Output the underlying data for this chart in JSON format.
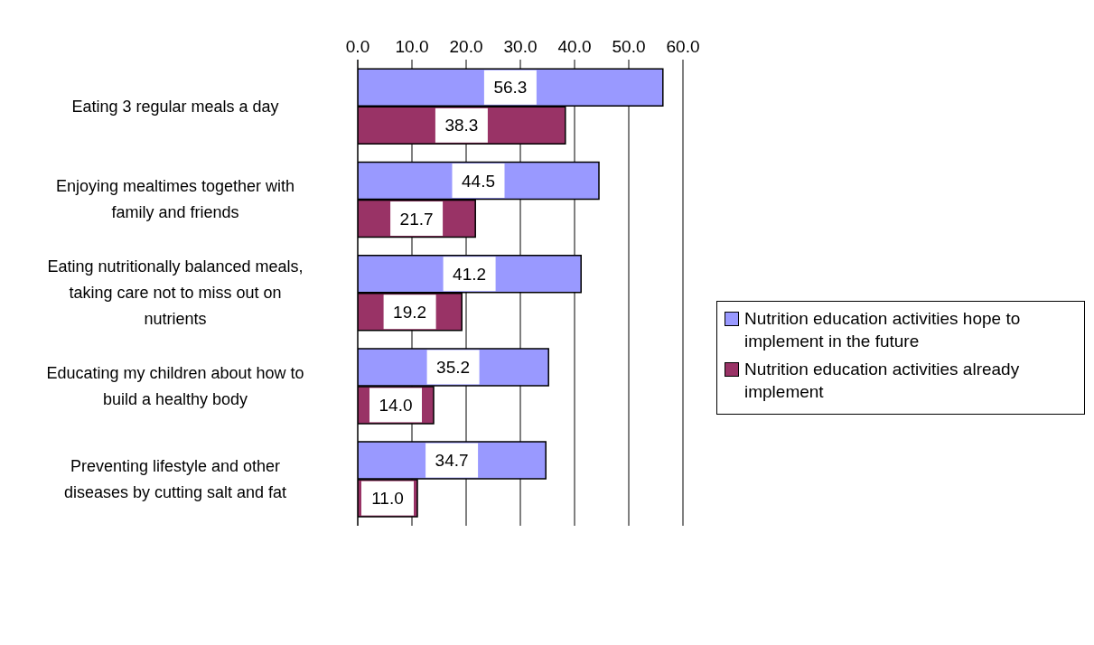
{
  "chart_data": {
    "type": "bar",
    "orientation": "horizontal",
    "categories": [
      "Eating 3 regular meals a day",
      "Enjoying mealtimes together with family and friends",
      "Eating nutritionally balanced meals, taking care not to miss out on nutrients",
      "Educating my children about how to build a healthy body",
      "Preventing lifestyle and other diseases by cutting salt and fat"
    ],
    "series": [
      {
        "name": "Nutrition education activities hope to implement in the future",
        "color": "#9999ff",
        "values": [
          56.3,
          44.5,
          41.2,
          35.2,
          34.7
        ],
        "value_labels": [
          "56.3",
          "44.5",
          "41.2",
          "35.2",
          "34.7"
        ]
      },
      {
        "name": "Nutrition education activities already implement",
        "color": "#993366",
        "values": [
          38.3,
          21.7,
          19.2,
          14.0,
          11.0
        ],
        "value_labels": [
          "38.3",
          "21.7",
          "19.2",
          "14.0",
          "11.0"
        ]
      }
    ],
    "xlim": [
      0,
      60
    ],
    "xticks": [
      {
        "value": 0,
        "label": "0.0"
      },
      {
        "value": 10,
        "label": "10.0"
      },
      {
        "value": 20,
        "label": "20.0"
      },
      {
        "value": 30,
        "label": "30.0"
      },
      {
        "value": 40,
        "label": "40.0"
      },
      {
        "value": 50,
        "label": "50.0"
      },
      {
        "value": 60,
        "label": "60.0"
      }
    ],
    "grid": "x",
    "legend": "right"
  }
}
